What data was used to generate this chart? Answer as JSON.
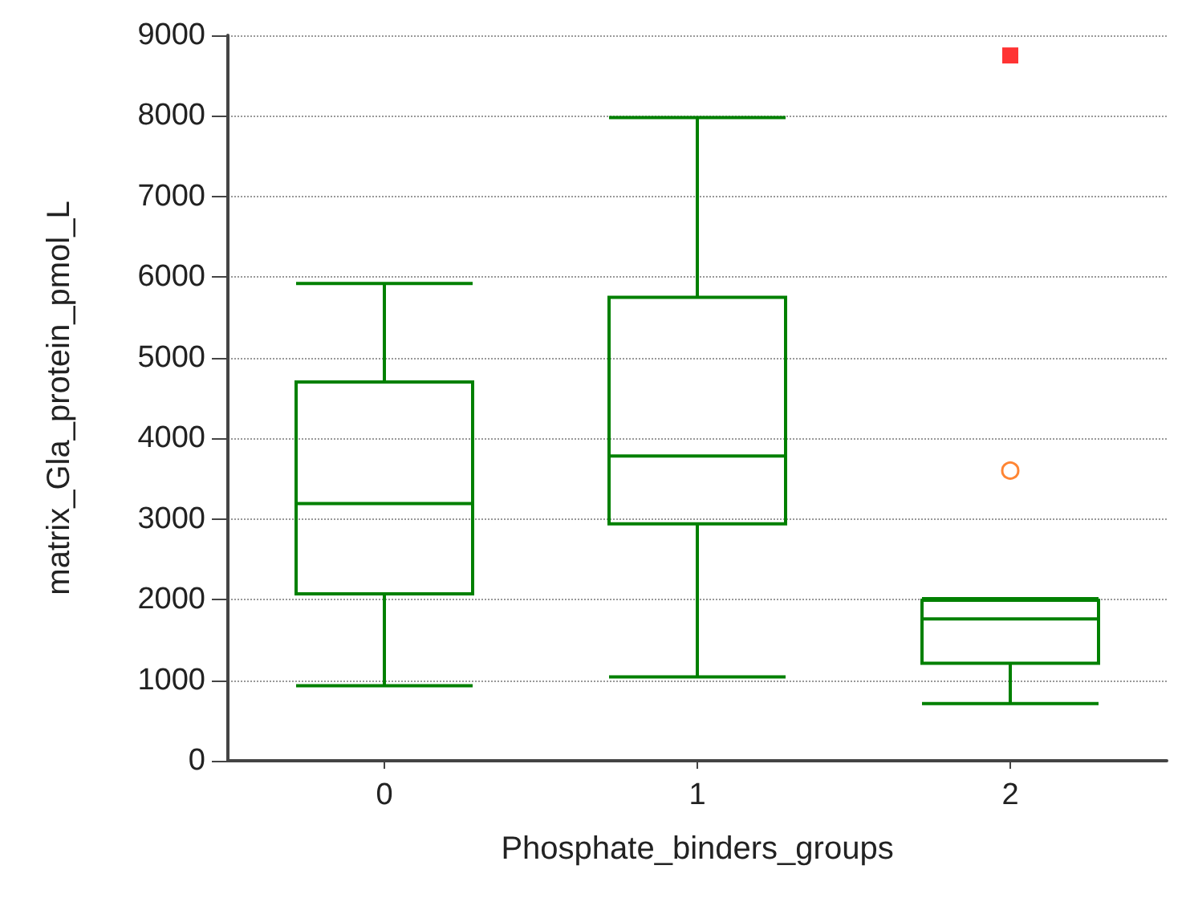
{
  "chart_data": {
    "type": "box",
    "xlabel": "Phosphate_binders_groups",
    "ylabel": "matrix_Gla_protein_pmol_L",
    "categories": [
      "0",
      "1",
      "2"
    ],
    "ylim": [
      0,
      9000
    ],
    "yticks": [
      0,
      1000,
      2000,
      3000,
      4000,
      5000,
      6000,
      7000,
      8000,
      9000
    ],
    "grid": "y",
    "series": [
      {
        "type": "box",
        "color": "#008000",
        "boxes": [
          {
            "low": 930,
            "q1": 2070,
            "median": 3190,
            "q3": 4700,
            "high": 5920
          },
          {
            "low": 1040,
            "q1": 2940,
            "median": 3780,
            "q3": 5750,
            "high": 7980
          },
          {
            "low": 710,
            "q1": 1210,
            "median": 1760,
            "q3": 1990,
            "high": 2010
          }
        ]
      },
      {
        "type": "scatter",
        "x": [
          "2"
        ],
        "values": [
          3600
        ],
        "color": "#ff6600",
        "marker": "circle"
      },
      {
        "type": "scatter",
        "x": [
          "2"
        ],
        "values": [
          8750
        ],
        "color": "#ff0000",
        "marker": "square"
      }
    ]
  }
}
